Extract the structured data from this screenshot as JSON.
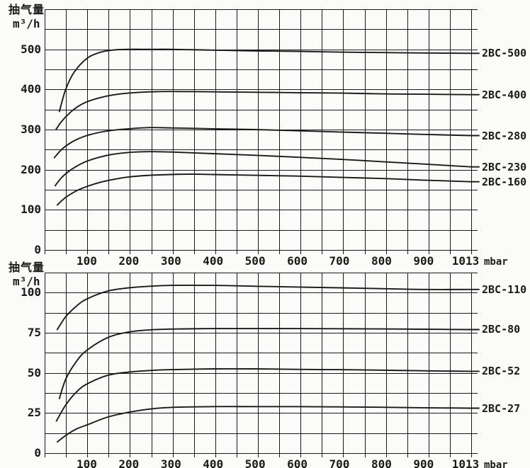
{
  "colors": {
    "line": "#1a1a1a",
    "text": "#1a1a1a",
    "background": "#fbfbf9"
  },
  "chart_data": [
    {
      "type": "line",
      "title": "",
      "y_axis_title": [
        "抽气量",
        "m³/h"
      ],
      "x_unit": "mbar",
      "xlabel": "",
      "ylabel": "抽气量 m³/h",
      "xlim": [
        0,
        1013
      ],
      "ylim": [
        0,
        600
      ],
      "x_ticks": [
        100,
        200,
        300,
        400,
        500,
        600,
        700,
        800,
        900,
        1013
      ],
      "y_ticks": [
        0,
        100,
        200,
        300,
        400,
        500
      ],
      "x_grid_divisions": 20,
      "y_grid_divisions": 12,
      "grid": true,
      "legend_position": "right",
      "series": [
        {
          "name": "2BC-500",
          "points": [
            [
              35,
              345
            ],
            [
              50,
              400
            ],
            [
              70,
              443
            ],
            [
              100,
              477
            ],
            [
              130,
              492
            ],
            [
              160,
              498
            ],
            [
              200,
              500
            ],
            [
              250,
              500
            ],
            [
              300,
              500
            ],
            [
              400,
              498
            ],
            [
              500,
              496
            ],
            [
              600,
              495
            ],
            [
              700,
              493
            ],
            [
              800,
              492
            ],
            [
              900,
              491
            ],
            [
              1013,
              490
            ]
          ]
        },
        {
          "name": "2BC-400",
          "points": [
            [
              27,
              300
            ],
            [
              40,
              320
            ],
            [
              60,
              342
            ],
            [
              80,
              358
            ],
            [
              100,
              369
            ],
            [
              130,
              379
            ],
            [
              160,
              386
            ],
            [
              200,
              391
            ],
            [
              250,
              394
            ],
            [
              300,
              395
            ],
            [
              400,
              394
            ],
            [
              500,
              393
            ],
            [
              600,
              392
            ],
            [
              700,
              391
            ],
            [
              800,
              389
            ],
            [
              900,
              388
            ],
            [
              1013,
              387
            ]
          ]
        },
        {
          "name": "2BC-280",
          "points": [
            [
              23,
              230
            ],
            [
              40,
              250
            ],
            [
              60,
              266
            ],
            [
              80,
              277
            ],
            [
              100,
              285
            ],
            [
              130,
              293
            ],
            [
              160,
              298
            ],
            [
              200,
              302
            ],
            [
              250,
              305
            ],
            [
              300,
              304
            ],
            [
              400,
              302
            ],
            [
              500,
              300
            ],
            [
              600,
              297
            ],
            [
              700,
              294
            ],
            [
              800,
              291
            ],
            [
              900,
              288
            ],
            [
              1013,
              285
            ]
          ]
        },
        {
          "name": "2BC-230",
          "points": [
            [
              25,
              160
            ],
            [
              40,
              180
            ],
            [
              60,
              198
            ],
            [
              80,
              211
            ],
            [
              100,
              221
            ],
            [
              130,
              231
            ],
            [
              160,
              238
            ],
            [
              200,
              243
            ],
            [
              250,
              245
            ],
            [
              300,
              244
            ],
            [
              400,
              240
            ],
            [
              500,
              236
            ],
            [
              600,
              231
            ],
            [
              700,
              226
            ],
            [
              800,
              220
            ],
            [
              900,
              214
            ],
            [
              1013,
              207
            ]
          ]
        },
        {
          "name": "2BC-160",
          "points": [
            [
              30,
              112
            ],
            [
              50,
              131
            ],
            [
              75,
              147
            ],
            [
              100,
              158
            ],
            [
              130,
              168
            ],
            [
              160,
              175
            ],
            [
              200,
              182
            ],
            [
              250,
              186
            ],
            [
              300,
              188
            ],
            [
              350,
              189
            ],
            [
              400,
              188
            ],
            [
              500,
              186
            ],
            [
              600,
              184
            ],
            [
              700,
              181
            ],
            [
              800,
              178
            ],
            [
              900,
              174
            ],
            [
              1013,
              170
            ]
          ]
        }
      ]
    },
    {
      "type": "line",
      "title": "",
      "y_axis_title": [
        "抽气量",
        "m³/h"
      ],
      "x_unit": "mbar",
      "xlabel": "",
      "ylabel": "抽气量 m³/h",
      "xlim": [
        0,
        1013
      ],
      "ylim": [
        0,
        112.5
      ],
      "x_ticks": [
        100,
        200,
        300,
        400,
        500,
        600,
        700,
        800,
        900,
        1013
      ],
      "y_ticks": [
        0,
        25,
        50,
        75,
        100
      ],
      "x_grid_divisions": 20,
      "y_grid_divisions": 9,
      "grid": true,
      "legend_position": "right",
      "series": [
        {
          "name": "2BC-110",
          "points": [
            [
              30,
              77
            ],
            [
              50,
              85
            ],
            [
              75,
              91.5
            ],
            [
              100,
              96
            ],
            [
              150,
              101
            ],
            [
              200,
              103
            ],
            [
              250,
              104
            ],
            [
              300,
              104.5
            ],
            [
              400,
              104.5
            ],
            [
              500,
              104
            ],
            [
              600,
              103.5
            ],
            [
              700,
              103
            ],
            [
              800,
              102.5
            ],
            [
              900,
              102
            ],
            [
              1013,
              102
            ]
          ]
        },
        {
          "name": "2BC-80",
          "points": [
            [
              35,
              34
            ],
            [
              50,
              46
            ],
            [
              75,
              57
            ],
            [
              100,
              64
            ],
            [
              150,
              72
            ],
            [
              200,
              75.5
            ],
            [
              250,
              76.8
            ],
            [
              300,
              77.3
            ],
            [
              400,
              77.6
            ],
            [
              500,
              77.6
            ],
            [
              600,
              77.6
            ],
            [
              700,
              77.5
            ],
            [
              800,
              77.4
            ],
            [
              900,
              77.2
            ],
            [
              1013,
              77
            ]
          ]
        },
        {
          "name": "2BC-52",
          "points": [
            [
              28,
              20
            ],
            [
              50,
              30
            ],
            [
              75,
              38
            ],
            [
              100,
              43
            ],
            [
              150,
              48.5
            ],
            [
              200,
              50.5
            ],
            [
              250,
              51.5
            ],
            [
              300,
              52
            ],
            [
              400,
              52.5
            ],
            [
              500,
              52.5
            ],
            [
              600,
              52.2
            ],
            [
              700,
              52
            ],
            [
              800,
              51.7
            ],
            [
              900,
              51.3
            ],
            [
              1013,
              51
            ]
          ]
        },
        {
          "name": "2BC-27",
          "points": [
            [
              30,
              7
            ],
            [
              50,
              11
            ],
            [
              75,
              15
            ],
            [
              100,
              17.5
            ],
            [
              150,
              22.5
            ],
            [
              200,
              25.5
            ],
            [
              250,
              27.5
            ],
            [
              300,
              28.5
            ],
            [
              400,
              29
            ],
            [
              500,
              29
            ],
            [
              600,
              29
            ],
            [
              700,
              28.8
            ],
            [
              800,
              28.6
            ],
            [
              900,
              28.3
            ],
            [
              1013,
              28
            ]
          ]
        }
      ]
    }
  ]
}
